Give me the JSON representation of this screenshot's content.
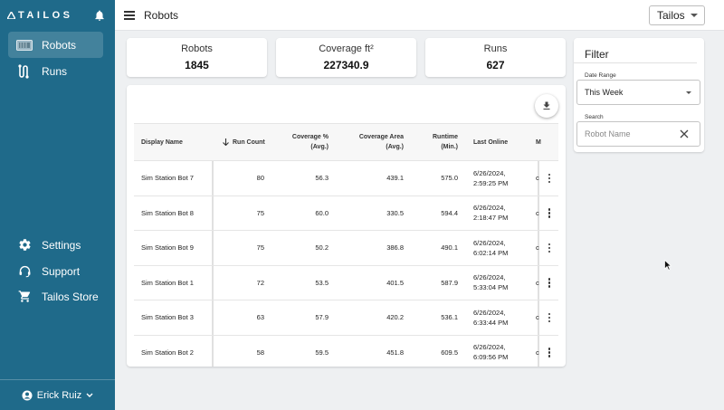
{
  "sidebar": {
    "brand": "TAILOS",
    "nav": [
      {
        "label": "Robots",
        "icon": "robot-icon",
        "active": true
      },
      {
        "label": "Runs",
        "icon": "route-icon",
        "active": false
      }
    ],
    "bottom_nav": [
      {
        "label": "Settings",
        "icon": "gear-icon"
      },
      {
        "label": "Support",
        "icon": "headset-icon"
      },
      {
        "label": "Tailos Store",
        "icon": "cart-icon"
      }
    ],
    "user": "Erick Ruiz"
  },
  "header": {
    "title": "Robots",
    "org_select": "Tailos"
  },
  "stats": [
    {
      "label": "Robots",
      "value": "1845"
    },
    {
      "label": "Coverage ft²",
      "value": "227340.9"
    },
    {
      "label": "Runs",
      "value": "627"
    }
  ],
  "table": {
    "headers": {
      "name": "Display Name",
      "runs": "Run Count",
      "coverage_1": "Coverage %",
      "coverage_2": "(Avg.)",
      "area_1": "Coverage Area",
      "area_2": "(Avg.)",
      "runtime_1": "Runtime",
      "runtime_2": "(Min.)",
      "last": "Last Online",
      "more": "M"
    },
    "rows": [
      {
        "name": "Sim Station Bot 7",
        "runs": "80",
        "coverage": "56.3",
        "area": "439.1",
        "runtime": "575.0",
        "last_1": "6/26/2024,",
        "last_2": "2:59:25 PM",
        "more": "c"
      },
      {
        "name": "Sim Station Bot 8",
        "runs": "75",
        "coverage": "60.0",
        "area": "330.5",
        "runtime": "594.4",
        "last_1": "6/26/2024,",
        "last_2": "2:18:47 PM",
        "more": "c"
      },
      {
        "name": "Sim Station Bot 9",
        "runs": "75",
        "coverage": "50.2",
        "area": "386.8",
        "runtime": "490.1",
        "last_1": "6/26/2024,",
        "last_2": "6:02:14 PM",
        "more": "c"
      },
      {
        "name": "Sim Station Bot 1",
        "runs": "72",
        "coverage": "53.5",
        "area": "401.5",
        "runtime": "587.9",
        "last_1": "6/26/2024,",
        "last_2": "5:33:04 PM",
        "more": "c"
      },
      {
        "name": "Sim Station Bot 3",
        "runs": "63",
        "coverage": "57.9",
        "area": "420.2",
        "runtime": "536.1",
        "last_1": "6/26/2024,",
        "last_2": "6:33:44 PM",
        "more": "c"
      },
      {
        "name": "Sim Station Bot 2",
        "runs": "58",
        "coverage": "59.5",
        "area": "451.8",
        "runtime": "609.5",
        "last_1": "6/26/2024,",
        "last_2": "6:09:56 PM",
        "more": "c"
      }
    ]
  },
  "filter": {
    "title": "Filter",
    "date_range_label": "Date Range",
    "date_range_value": "This Week",
    "search_label": "Search",
    "search_placeholder": "Robot Name"
  }
}
